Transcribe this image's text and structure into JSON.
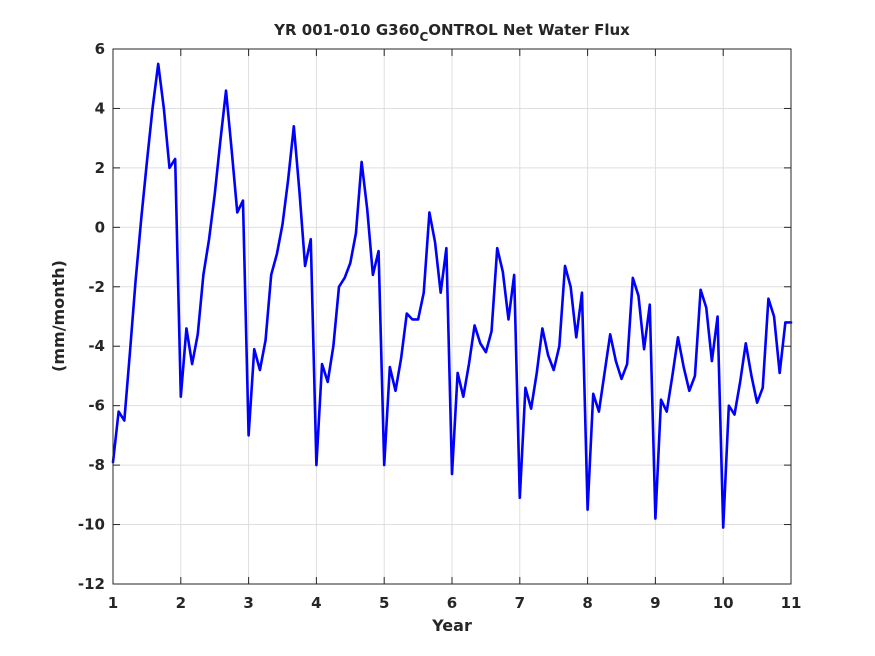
{
  "chart_data": {
    "type": "line",
    "title": "YR 001-010 G360",
    "title_subscript": "C",
    "title_suffix": "ONTROL Net Water Flux",
    "xlabel": "Year",
    "ylabel": "(mm/month)",
    "xlim": [
      1,
      11
    ],
    "ylim": [
      -12,
      6
    ],
    "xticks": [
      1,
      2,
      3,
      4,
      5,
      6,
      7,
      8,
      9,
      10,
      11
    ],
    "yticks": [
      -12,
      -10,
      -8,
      -6,
      -4,
      -2,
      0,
      2,
      4,
      6
    ],
    "grid": true,
    "series": [
      {
        "color": "#0000ff",
        "x": [
          1.0,
          1.083,
          1.167,
          1.25,
          1.333,
          1.417,
          1.5,
          1.583,
          1.667,
          1.75,
          1.833,
          1.917,
          2.0,
          2.083,
          2.167,
          2.25,
          2.333,
          2.417,
          2.5,
          2.583,
          2.667,
          2.75,
          2.833,
          2.917,
          3.0,
          3.083,
          3.167,
          3.25,
          3.333,
          3.417,
          3.5,
          3.583,
          3.667,
          3.75,
          3.833,
          3.917,
          4.0,
          4.083,
          4.167,
          4.25,
          4.333,
          4.417,
          4.5,
          4.583,
          4.667,
          4.75,
          4.833,
          4.917,
          5.0,
          5.083,
          5.167,
          5.25,
          5.333,
          5.417,
          5.5,
          5.583,
          5.667,
          5.75,
          5.833,
          5.917,
          6.0,
          6.083,
          6.167,
          6.25,
          6.333,
          6.417,
          6.5,
          6.583,
          6.667,
          6.75,
          6.833,
          6.917,
          7.0,
          7.083,
          7.167,
          7.25,
          7.333,
          7.417,
          7.5,
          7.583,
          7.667,
          7.75,
          7.833,
          7.917,
          8.0,
          8.083,
          8.167,
          8.25,
          8.333,
          8.417,
          8.5,
          8.583,
          8.667,
          8.75,
          8.833,
          8.917,
          9.0,
          9.083,
          9.167,
          9.25,
          9.333,
          9.417,
          9.5,
          9.583,
          9.667,
          9.75,
          9.833,
          9.917,
          10.0,
          10.083,
          10.167,
          10.25,
          10.333,
          10.417,
          10.5,
          10.583,
          10.667,
          10.75,
          10.833,
          10.917,
          11.0
        ],
        "y": [
          -7.9,
          -6.2,
          -6.5,
          -4.2,
          -1.8,
          0.3,
          2.2,
          4.0,
          5.5,
          4.0,
          2.0,
          2.3,
          -5.7,
          -3.4,
          -4.6,
          -3.6,
          -1.6,
          -0.4,
          1.1,
          2.9,
          4.6,
          2.6,
          0.5,
          0.9,
          -7.0,
          -4.1,
          -4.8,
          -3.8,
          -1.6,
          -0.9,
          0.1,
          1.6,
          3.4,
          1.2,
          -1.3,
          -0.4,
          -8.0,
          -4.6,
          -5.2,
          -4.0,
          -2.0,
          -1.7,
          -1.2,
          -0.2,
          2.2,
          0.6,
          -1.6,
          -0.8,
          -8.0,
          -4.7,
          -5.5,
          -4.4,
          -2.9,
          -3.1,
          -3.1,
          -2.2,
          0.5,
          -0.5,
          -2.2,
          -0.7,
          -8.3,
          -4.9,
          -5.7,
          -4.6,
          -3.3,
          -3.9,
          -4.2,
          -3.5,
          -0.7,
          -1.5,
          -3.1,
          -1.6,
          -9.1,
          -5.4,
          -6.1,
          -4.9,
          -3.4,
          -4.3,
          -4.8,
          -4.0,
          -1.3,
          -2.0,
          -3.7,
          -2.2,
          -9.5,
          -5.6,
          -6.2,
          -4.9,
          -3.6,
          -4.5,
          -5.1,
          -4.6,
          -1.7,
          -2.3,
          -4.1,
          -2.6,
          -9.8,
          -5.8,
          -6.2,
          -5.0,
          -3.7,
          -4.7,
          -5.5,
          -5.0,
          -2.1,
          -2.7,
          -4.5,
          -3.0,
          -10.1,
          -6.0,
          -6.3,
          -5.2,
          -3.9,
          -5.0,
          -5.9,
          -5.4,
          -2.4,
          -3.0,
          -4.9,
          -3.2,
          -3.2
        ]
      }
    ]
  }
}
